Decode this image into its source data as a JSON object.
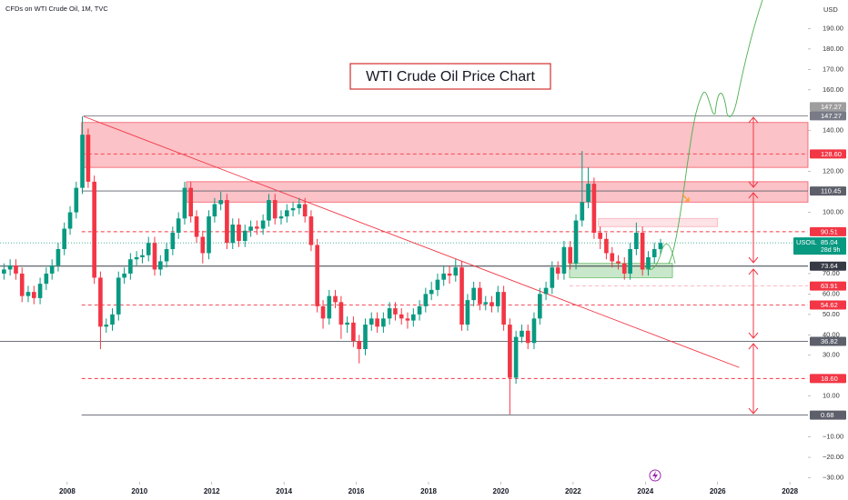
{
  "chart_data": {
    "type": "candlestick",
    "title": "WTI Crude Oil Price Chart",
    "subtitle": "CFDs on WTI Crude Oil, 1M, TVC",
    "currency": "USD",
    "up_color": "#089981",
    "down_color": "#f23645",
    "xlim": [
      2006.14,
      2028.5
    ],
    "xticks": [
      2008,
      2010,
      2012,
      2014,
      2016,
      2018,
      2020,
      2022,
      2024,
      2026,
      2028
    ],
    "ylim": [
      -32,
      204
    ],
    "yticks": [
      {
        "value": 190,
        "label": "190.00"
      },
      {
        "value": 180,
        "label": "180.00"
      },
      {
        "value": 170,
        "label": "170.00"
      },
      {
        "value": 160,
        "label": "160.00"
      },
      {
        "value": 140,
        "label": "140.00"
      },
      {
        "value": 120,
        "label": "120.00"
      },
      {
        "value": 100,
        "label": "100.00"
      },
      {
        "value": 70,
        "label": "70.00"
      },
      {
        "value": 60,
        "label": "60.00"
      },
      {
        "value": 50,
        "label": "50.00"
      },
      {
        "value": 40,
        "label": "40.00"
      },
      {
        "value": 30,
        "label": "30.00"
      },
      {
        "value": 10,
        "label": "10.00"
      },
      {
        "value": -10,
        "label": "−10.00"
      },
      {
        "value": -20,
        "label": "−20.00"
      },
      {
        "value": -30,
        "label": "−30.00"
      }
    ],
    "x": [
      2006.25,
      2006.42,
      2006.58,
      2006.75,
      2006.92,
      2007.08,
      2007.25,
      2007.42,
      2007.58,
      2007.75,
      2007.92,
      2008.08,
      2008.25,
      2008.42,
      2008.58,
      2008.75,
      2008.92,
      2009.08,
      2009.25,
      2009.42,
      2009.58,
      2009.75,
      2009.92,
      2010.08,
      2010.25,
      2010.42,
      2010.58,
      2010.75,
      2010.92,
      2011.08,
      2011.25,
      2011.42,
      2011.58,
      2011.75,
      2011.92,
      2012.08,
      2012.25,
      2012.42,
      2012.58,
      2012.75,
      2012.92,
      2013.08,
      2013.25,
      2013.42,
      2013.58,
      2013.75,
      2013.92,
      2014.08,
      2014.25,
      2014.42,
      2014.58,
      2014.75,
      2014.92,
      2015.08,
      2015.25,
      2015.42,
      2015.58,
      2015.75,
      2015.92,
      2016.08,
      2016.25,
      2016.42,
      2016.58,
      2016.75,
      2016.92,
      2017.08,
      2017.25,
      2017.42,
      2017.58,
      2017.75,
      2017.92,
      2018.08,
      2018.25,
      2018.42,
      2018.58,
      2018.75,
      2018.92,
      2019.08,
      2019.25,
      2019.42,
      2019.58,
      2019.75,
      2019.92,
      2020.08,
      2020.25,
      2020.42,
      2020.58,
      2020.75,
      2020.92,
      2021.08,
      2021.25,
      2021.42,
      2021.58,
      2021.75,
      2021.92,
      2022.08,
      2022.25,
      2022.42,
      2022.58,
      2022.75,
      2022.92,
      2023.08,
      2023.25,
      2023.42,
      2023.58,
      2023.75,
      2023.92,
      2024.08,
      2024.25,
      2024.42
    ],
    "open": [
      70,
      72,
      74,
      70,
      59,
      61,
      58,
      65,
      70,
      74,
      82,
      92,
      100,
      112,
      138,
      115,
      68,
      44,
      45,
      50,
      68,
      70,
      77,
      78,
      79,
      85,
      72,
      76,
      82,
      90,
      97,
      112,
      98,
      88,
      80,
      98,
      104,
      106,
      85,
      94,
      86,
      91,
      93,
      92,
      96,
      106,
      97,
      98,
      101,
      102,
      104,
      98,
      84,
      54,
      48,
      59,
      56,
      45,
      46,
      37,
      33,
      45,
      48,
      44,
      48,
      53,
      50,
      48,
      47,
      50,
      54,
      60,
      62,
      67,
      70,
      69,
      73,
      45,
      57,
      63,
      55,
      56,
      54,
      61,
      45,
      19,
      39,
      42,
      36,
      48,
      60,
      63,
      73,
      70,
      83,
      75,
      96,
      105,
      114,
      90,
      87,
      80,
      76,
      75,
      70,
      82,
      90,
      72,
      78,
      82
    ],
    "high": [
      75,
      77,
      77,
      73,
      64,
      64,
      68,
      73,
      77,
      85,
      95,
      103,
      115,
      147,
      141,
      118,
      71,
      48,
      53,
      71,
      73,
      80,
      81,
      82,
      88,
      88,
      79,
      85,
      93,
      100,
      115,
      115,
      101,
      91,
      101,
      107,
      110,
      109,
      97,
      97,
      94,
      96,
      96,
      99,
      109,
      109,
      101,
      104,
      105,
      107,
      107,
      101,
      87,
      57,
      62,
      62,
      59,
      49,
      49,
      40,
      48,
      51,
      51,
      51,
      56,
      56,
      53,
      51,
      53,
      57,
      63,
      66,
      70,
      74,
      74,
      77,
      76,
      60,
      66,
      66,
      59,
      59,
      64,
      64,
      48,
      42,
      45,
      45,
      51,
      63,
      66,
      76,
      76,
      86,
      86,
      99,
      130,
      122,
      117,
      93,
      90,
      83,
      79,
      78,
      85,
      95,
      93,
      81,
      85,
      87
    ],
    "low": [
      67,
      69,
      67,
      56,
      56,
      55,
      55,
      62,
      67,
      71,
      79,
      89,
      97,
      109,
      112,
      65,
      33,
      41,
      42,
      47,
      65,
      67,
      74,
      75,
      76,
      69,
      69,
      73,
      79,
      87,
      94,
      95,
      85,
      75,
      77,
      95,
      101,
      82,
      82,
      83,
      83,
      88,
      89,
      89,
      93,
      94,
      94,
      95,
      98,
      99,
      95,
      81,
      51,
      43,
      45,
      53,
      38,
      41,
      34,
      26,
      30,
      42,
      41,
      41,
      45,
      47,
      45,
      43,
      44,
      47,
      51,
      57,
      59,
      64,
      65,
      66,
      42,
      42,
      54,
      52,
      52,
      51,
      51,
      42,
      1,
      16,
      36,
      33,
      33,
      45,
      57,
      60,
      67,
      67,
      72,
      72,
      93,
      102,
      87,
      82,
      77,
      73,
      72,
      67,
      67,
      79,
      69,
      69,
      75,
      79
    ],
    "close": [
      72,
      74,
      70,
      59,
      61,
      58,
      65,
      70,
      74,
      82,
      92,
      100,
      112,
      138,
      115,
      68,
      44,
      45,
      50,
      68,
      70,
      77,
      78,
      79,
      85,
      72,
      76,
      82,
      90,
      97,
      112,
      98,
      88,
      80,
      98,
      104,
      106,
      85,
      94,
      86,
      91,
      93,
      92,
      96,
      106,
      97,
      98,
      101,
      102,
      104,
      98,
      84,
      54,
      48,
      59,
      56,
      45,
      46,
      37,
      33,
      45,
      48,
      44,
      48,
      53,
      50,
      48,
      47,
      50,
      54,
      60,
      62,
      67,
      70,
      69,
      73,
      45,
      57,
      63,
      55,
      56,
      54,
      61,
      45,
      19,
      39,
      42,
      36,
      48,
      60,
      63,
      73,
      70,
      83,
      75,
      96,
      105,
      114,
      90,
      87,
      80,
      76,
      75,
      70,
      82,
      90,
      72,
      78,
      82,
      85
    ],
    "zones": [
      {
        "top": 144,
        "bottom": 122,
        "x0": 2008.4,
        "x1": 2028.5,
        "color": "#f23645"
      },
      {
        "top": 115,
        "bottom": 105,
        "x0": 2011.3,
        "x1": 2028.5,
        "color": "#f23645"
      },
      {
        "top": 97,
        "bottom": 93,
        "x0": 2022.7,
        "x1": 2026.0,
        "color": "#f7a1ab"
      },
      {
        "top": 75,
        "bottom": 68,
        "x0": 2021.9,
        "x1": 2024.75,
        "color": "#4caf50"
      }
    ],
    "levels": [
      {
        "value": 147.27,
        "label": "147.27",
        "color": "#9e9e9e",
        "style": "none",
        "from": 2008.45
      },
      {
        "value": 147.27,
        "label": "147.27",
        "color": "#787b86",
        "style": "solid",
        "from": 2008.45
      },
      {
        "value": 128.6,
        "label": "128.60",
        "color": "#f23645",
        "style": "dashed",
        "from": 2008.4
      },
      {
        "value": 110.45,
        "label": "110.45",
        "color": "#5d606b",
        "style": "solid",
        "from": 2008.4
      },
      {
        "value": 90.51,
        "label": "90.51",
        "color": "#f23645",
        "style": "dashed",
        "from": 2008.4
      },
      {
        "value": 73.64,
        "label": "73.64",
        "color": "#363a45",
        "style": "solid",
        "from": 2006.14
      },
      {
        "value": 63.91,
        "label": "63.91",
        "color": "#f23645",
        "style": "dashed-light",
        "from": 2021.9
      },
      {
        "value": 54.62,
        "label": "54.62",
        "color": "#f23645",
        "style": "dashed",
        "from": 2008.4
      },
      {
        "value": 36.82,
        "label": "36.82",
        "color": "#5d606b",
        "style": "solid",
        "from": 2006.14
      },
      {
        "value": 18.6,
        "label": "18.60",
        "color": "#f23645",
        "style": "dashed",
        "from": 2008.4
      },
      {
        "value": 0.68,
        "label": "0.68",
        "color": "#5d606b",
        "style": "solid",
        "from": 2008.4
      }
    ],
    "current": {
      "symbol": "USOIL",
      "value": 85.04,
      "countdown": "28d 9h",
      "color": "#089981"
    },
    "trendline": {
      "x": [
        2008.45,
        2026.6
      ],
      "y": [
        147,
        24
      ],
      "color": "#f23645"
    }
  }
}
